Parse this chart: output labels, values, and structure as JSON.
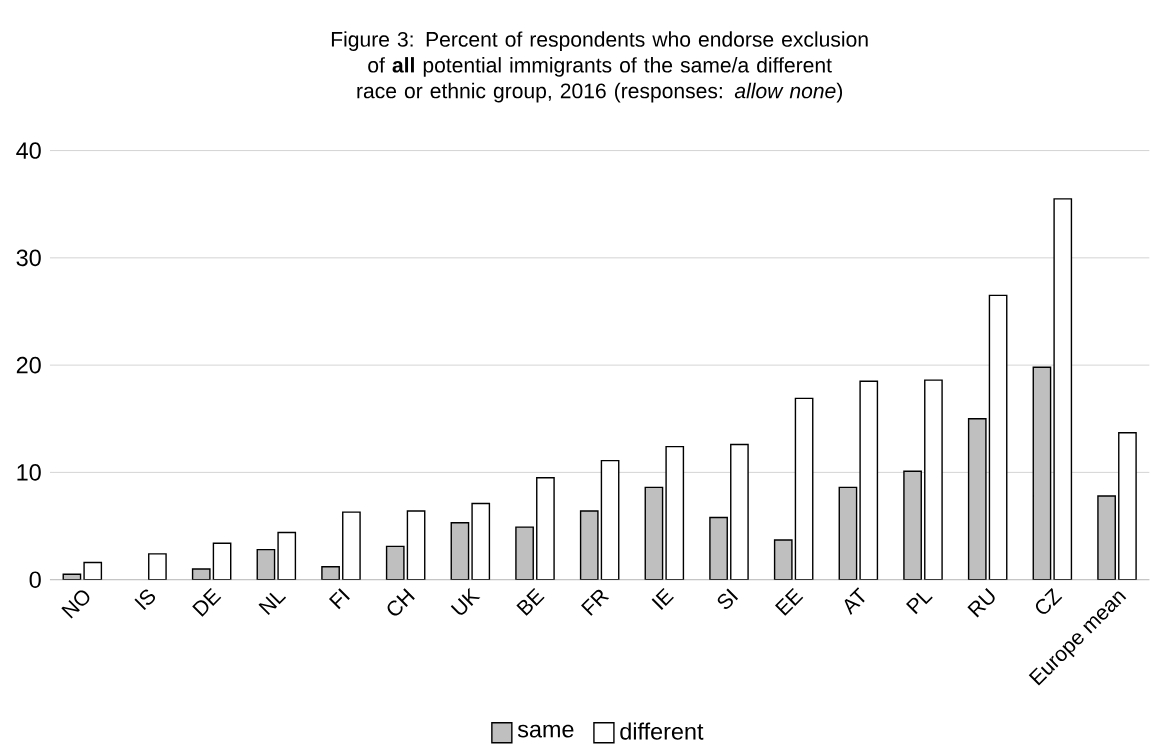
{
  "chart_data": {
    "type": "bar",
    "title": "Figure 3: Percent of respondents who endorse exclusion of **all** potential immigrants of the same/a different race or ethnic group, 2016 (responses: *allow none*)",
    "categories": [
      "NO",
      "IS",
      "DE",
      "NL",
      "FI",
      "CH",
      "UK",
      "BE",
      "FR",
      "IE",
      "SI",
      "EE",
      "AT",
      "PL",
      "RU",
      "CZ",
      "Europe mean"
    ],
    "series": [
      {
        "name": "same",
        "color": "#bfbfbf",
        "values": [
          0.5,
          null,
          1.0,
          2.8,
          1.2,
          3.1,
          5.3,
          4.9,
          6.4,
          8.6,
          5.8,
          3.7,
          8.6,
          10.1,
          15.0,
          19.8,
          7.8
        ]
      },
      {
        "name": "different",
        "color": "#ffffff",
        "values": [
          1.6,
          2.4,
          3.4,
          4.4,
          6.3,
          6.4,
          7.1,
          9.5,
          11.1,
          12.4,
          12.6,
          16.9,
          18.5,
          18.6,
          26.5,
          35.5,
          13.7
        ]
      }
    ],
    "ylim": [
      0,
      40
    ],
    "yticks": [
      0,
      10,
      20,
      30,
      40
    ],
    "grid": "y",
    "legend": "bottom"
  }
}
